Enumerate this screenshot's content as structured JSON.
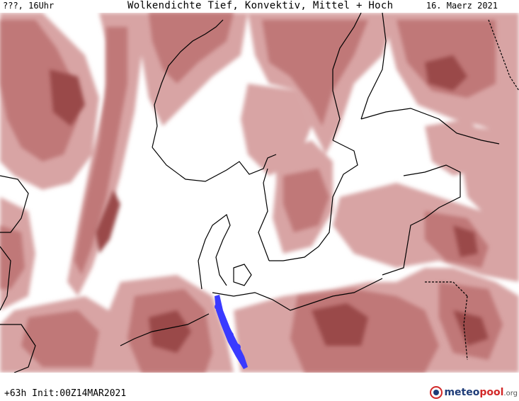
{
  "header": {
    "valid_time": "???, 16Uhr",
    "title": "Wolkendichte  Tief, Konvektiv, Mittel + Hoch",
    "date": "16. Maerz 2021"
  },
  "footer": {
    "run_info": "+63h Init:00Z14MAR2021"
  },
  "logo": {
    "part1": "meteo",
    "part2": "pool",
    "part3": ".org"
  },
  "colors": {
    "cloud_light": "#d8a4a4",
    "cloud_medium": "#c07878",
    "cloud_dark": "#9a4848",
    "convective": "#3a3aff",
    "coastline": "#000000"
  }
}
